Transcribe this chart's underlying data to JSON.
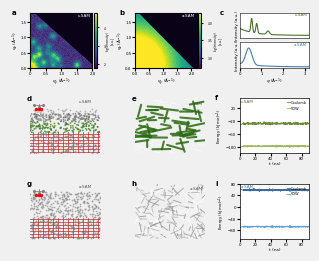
{
  "c_sam_label": "c-SAM",
  "a_sam_label": "a-SAM",
  "coulomb_label": "Coulomb",
  "vdw_label": "VDW",
  "c_sam_color": "#4a6e30",
  "a_sam_color": "#4a7aaa",
  "coulomb_c_color": "#6a8a3a",
  "vdw_c_color": "#a0b860",
  "coulomb_a_color": "#3a6aa0",
  "vdw_a_color": "#60a0d0",
  "bg_color": "#f0f0f0",
  "panel_bg": "#ffffff",
  "red_grid_color": "#cc2222",
  "green_mol_color": "#3a7a20",
  "gray_mol_color": "#909090",
  "c_energy_coulomb": -28,
  "c_energy_vdw": -98,
  "a_energy_coulomb": 58,
  "a_energy_vdw": -68,
  "f_ylim": [
    -120,
    50
  ],
  "i_ylim": [
    -110,
    80
  ]
}
